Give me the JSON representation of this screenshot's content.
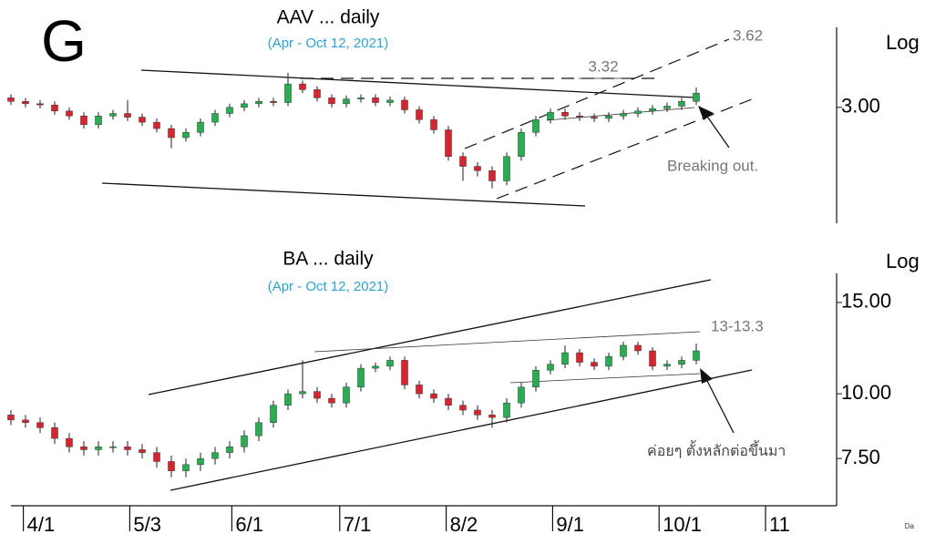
{
  "panel_letter": "G",
  "footer": "Da",
  "chart_data": [
    {
      "type": "candlestick",
      "title": "AAV ... daily",
      "subtitle": "(Apr - Oct 12, 2021)",
      "axis_label": "Log",
      "log_scale": true,
      "up_color": "#22b14c",
      "down_color": "#e0202a",
      "open": [
        3.08,
        3.05,
        3.03,
        3.02,
        2.97,
        2.93,
        2.86,
        2.93,
        2.95,
        2.92,
        2.88,
        2.83,
        2.76,
        2.8,
        2.88,
        2.95,
        3.0,
        3.03,
        3.05,
        3.04,
        3.2,
        3.15,
        3.08,
        3.03,
        3.07,
        3.08,
        3.04,
        3.06,
        2.98,
        2.9,
        2.82,
        2.62,
        2.55,
        2.52,
        2.45,
        2.62,
        2.8,
        2.9,
        2.96,
        2.93,
        2.92,
        2.91,
        2.93,
        2.95,
        2.97,
        2.99,
        3.01,
        3.05
      ],
      "high": [
        3.11,
        3.08,
        3.06,
        3.05,
        3.0,
        2.96,
        2.96,
        2.98,
        3.06,
        2.95,
        2.91,
        2.86,
        2.83,
        2.91,
        2.98,
        3.03,
        3.06,
        3.08,
        3.08,
        3.3,
        3.23,
        3.18,
        3.11,
        3.1,
        3.11,
        3.11,
        3.09,
        3.09,
        3.01,
        2.93,
        2.85,
        2.65,
        2.58,
        2.55,
        2.65,
        2.83,
        2.93,
        2.99,
        2.99,
        2.96,
        2.95,
        2.96,
        2.98,
        3.0,
        3.02,
        3.04,
        3.08,
        3.17
      ],
      "low": [
        3.02,
        3.0,
        2.99,
        2.94,
        2.9,
        2.83,
        2.83,
        2.9,
        2.89,
        2.85,
        2.8,
        2.68,
        2.73,
        2.77,
        2.85,
        2.92,
        2.97,
        3.0,
        3.01,
        3.01,
        3.12,
        3.05,
        3.0,
        3.0,
        3.04,
        3.01,
        3.01,
        2.95,
        2.87,
        2.79,
        2.59,
        2.45,
        2.48,
        2.4,
        2.42,
        2.59,
        2.77,
        2.87,
        2.9,
        2.89,
        2.88,
        2.88,
        2.9,
        2.92,
        2.94,
        2.96,
        2.98,
        3.02
      ],
      "close": [
        3.05,
        3.03,
        3.02,
        2.97,
        2.93,
        2.86,
        2.93,
        2.95,
        2.92,
        2.88,
        2.83,
        2.76,
        2.8,
        2.88,
        2.95,
        3.0,
        3.03,
        3.05,
        3.04,
        3.2,
        3.15,
        3.08,
        3.03,
        3.07,
        3.08,
        3.04,
        3.06,
        2.98,
        2.9,
        2.82,
        2.62,
        2.55,
        2.52,
        2.45,
        2.62,
        2.8,
        2.9,
        2.96,
        2.93,
        2.92,
        2.91,
        2.93,
        2.95,
        2.97,
        2.99,
        3.01,
        3.05,
        3.12
      ],
      "xlim": [
        -0.75,
        56.625
      ],
      "ylim": [
        2.18,
        3.74
      ],
      "yticks": [
        {
          "value": 3,
          "label": "3.00"
        }
      ],
      "annotations": [
        "3.32",
        "3.62",
        "Breaking out."
      ]
    },
    {
      "type": "candlestick",
      "title": "BA ... daily",
      "subtitle": "(Apr - Oct 12, 2021)",
      "axis_label": "Log",
      "log_scale": true,
      "up_color": "#22b14c",
      "down_color": "#e0202a",
      "open": [
        9.1,
        8.9,
        8.8,
        8.6,
        8.2,
        7.9,
        7.8,
        7.9,
        7.9,
        7.8,
        7.7,
        7.4,
        7.1,
        7.3,
        7.5,
        7.7,
        7.9,
        8.3,
        8.8,
        9.5,
        10.0,
        10.1,
        9.8,
        9.6,
        10.3,
        11.2,
        11.3,
        11.6,
        10.4,
        10.0,
        9.8,
        9.5,
        9.3,
        9.1,
        9.0,
        9.6,
        10.3,
        11.1,
        11.4,
        12.0,
        11.5,
        11.3,
        11.8,
        12.4,
        12.1,
        11.3,
        11.4,
        11.6
      ],
      "high": [
        9.3,
        9.1,
        9.0,
        8.8,
        8.4,
        8.1,
        8.1,
        8.1,
        8.1,
        8.0,
        7.9,
        7.6,
        7.5,
        7.7,
        7.9,
        8.1,
        8.5,
        9.0,
        9.7,
        10.2,
        11.6,
        10.3,
        10.0,
        10.5,
        11.4,
        11.5,
        11.8,
        11.8,
        10.6,
        10.2,
        10.0,
        9.7,
        9.5,
        9.3,
        9.8,
        10.5,
        11.3,
        11.6,
        12.4,
        12.2,
        11.7,
        12.0,
        12.6,
        12.6,
        12.3,
        11.6,
        11.8,
        12.5
      ],
      "low": [
        8.7,
        8.6,
        8.4,
        8.0,
        7.7,
        7.6,
        7.6,
        7.7,
        7.6,
        7.5,
        7.2,
        6.9,
        6.9,
        7.1,
        7.3,
        7.5,
        7.7,
        8.1,
        8.6,
        9.3,
        9.8,
        9.6,
        9.4,
        9.4,
        10.1,
        11.0,
        11.1,
        10.2,
        9.8,
        9.6,
        9.3,
        9.1,
        8.9,
        8.6,
        8.8,
        9.4,
        10.1,
        10.9,
        11.2,
        11.3,
        11.1,
        11.1,
        11.6,
        11.9,
        11.1,
        11.1,
        11.2,
        11.4
      ],
      "close": [
        8.9,
        8.8,
        8.6,
        8.2,
        7.9,
        7.8,
        7.9,
        7.9,
        7.8,
        7.7,
        7.4,
        7.1,
        7.3,
        7.5,
        7.7,
        7.9,
        8.3,
        8.8,
        9.5,
        10.0,
        10.1,
        9.8,
        9.6,
        10.3,
        11.2,
        11.3,
        11.6,
        10.4,
        10.0,
        9.8,
        9.5,
        9.3,
        9.1,
        9.0,
        9.6,
        10.3,
        11.1,
        11.4,
        12.0,
        11.5,
        11.3,
        11.8,
        12.4,
        12.1,
        11.3,
        11.4,
        11.6,
        12.1
      ],
      "xlim": [
        -0.75,
        56.625
      ],
      "ylim": [
        6.08,
        17.07
      ],
      "yticks": [
        {
          "value": 15,
          "label": "15.00"
        },
        {
          "value": 10,
          "label": "10.00"
        },
        {
          "value": 7.5,
          "label": "7.50"
        }
      ],
      "xticks": [
        {
          "value": 1.1,
          "label": "4/1"
        },
        {
          "value": 8.4,
          "label": "5/3"
        },
        {
          "value": 15.4,
          "label": "6/1"
        },
        {
          "value": 22.8,
          "label": "7/1"
        },
        {
          "value": 30.1,
          "label": "8/2"
        },
        {
          "value": 37.4,
          "label": "9/1"
        },
        {
          "value": 44.7,
          "label": "10/1"
        },
        {
          "value": 52,
          "label": "11"
        }
      ],
      "annotations": [
        "13-13.3",
        "ค่อยๆ ตั้งหลักต่อขึ้นมา"
      ]
    }
  ]
}
